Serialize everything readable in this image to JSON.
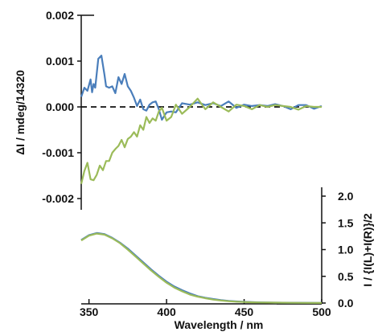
{
  "chart_data": [
    {
      "type": "line",
      "panel": "top",
      "xlabel": "Wavelength / nm",
      "ylabel": "ΔI / mdeg/14320",
      "xlim": [
        345,
        500
      ],
      "ylim": [
        -0.002,
        0.002
      ],
      "x_ticks": [
        "350",
        "400",
        "450",
        "500"
      ],
      "y_ticks": [
        "0.002",
        "0.001",
        "0.000",
        "-0.001",
        "-0.002"
      ],
      "reference_line": {
        "y": 0.0,
        "style": "dashed"
      },
      "series": [
        {
          "color": "#4a7ebb",
          "x": [
            345,
            347,
            349,
            351,
            352,
            353,
            354,
            356,
            358,
            360,
            361,
            363,
            365,
            367,
            369,
            371,
            373,
            375,
            377,
            379,
            381,
            383,
            385,
            387,
            389,
            391,
            393,
            395,
            397,
            400,
            403,
            406,
            410,
            415,
            420,
            425,
            430,
            435,
            440,
            445,
            450,
            455,
            460,
            465,
            470,
            475,
            480,
            485,
            490,
            495,
            500
          ],
          "y": [
            0.00022,
            0.00042,
            0.00035,
            0.0006,
            0.00032,
            0.0005,
            0.00042,
            0.00105,
            0.00112,
            0.0007,
            0.00045,
            0.00042,
            0.00045,
            0.0003,
            0.00065,
            0.0005,
            0.00072,
            0.00045,
            0.00035,
            0.0002,
            2e-05,
            0.00016,
            -5e-05,
            -8e-05,
            5e-05,
            0.0001,
            0.00012,
            -5e-05,
            -0.00028,
            -0.00012,
            -0.0001,
            -0.00012,
            8e-05,
            5e-05,
            0.0001,
            4e-05,
            8e-05,
            2e-05,
            0.00012,
            -2e-05,
            5e-05,
            2e-05,
            4e-05,
            2e-05,
            6e-05,
            2e-05,
            -5e-05,
            4e-05,
            4e-05,
            -4e-05,
            2e-05
          ]
        },
        {
          "color": "#9bbb59",
          "x": [
            345,
            347,
            349,
            351,
            353,
            355,
            357,
            359,
            361,
            363,
            365,
            367,
            369,
            371,
            373,
            375,
            377,
            379,
            381,
            383,
            385,
            387,
            389,
            391,
            393,
            395,
            397,
            400,
            403,
            406,
            410,
            415,
            420,
            425,
            430,
            435,
            440,
            445,
            450,
            455,
            460,
            465,
            470,
            475,
            480,
            485,
            490,
            495,
            500
          ],
          "y": [
            -0.00168,
            -0.0014,
            -0.00122,
            -0.00158,
            -0.0016,
            -0.00148,
            -0.00128,
            -0.00138,
            -0.00118,
            -0.00118,
            -0.001,
            -0.00092,
            -0.00085,
            -0.00072,
            -0.00088,
            -0.0007,
            -0.00065,
            -0.00055,
            -0.00065,
            -0.0004,
            -0.0005,
            -0.00022,
            -0.00035,
            -0.00025,
            -0.0003,
            -0.0001,
            -2e-05,
            -0.0003,
            -0.00022,
            5e-05,
            -0.00015,
            0.0,
            0.00018,
            -5e-05,
            0.0001,
            0.0,
            -0.0001,
            5e-05,
            2e-05,
            -5e-05,
            4e-05,
            0.0,
            4e-05,
            2e-05,
            0.0,
            -6e-05,
            2e-05,
            0.0,
            0.0
          ]
        }
      ]
    },
    {
      "type": "line",
      "panel": "bottom",
      "ylabel": "I / {I(L)+I(R)}/2",
      "xlim": [
        345,
        500
      ],
      "ylim": [
        0.0,
        2.0
      ],
      "y_axis_side": "right",
      "x_ticks": [
        "350",
        "400",
        "450",
        "500"
      ],
      "y_ticks": [
        "2.0",
        "1.5",
        "1.0",
        "0.5",
        "0.0"
      ],
      "series": [
        {
          "color": "#4a7ebb",
          "x": [
            345,
            350,
            355,
            360,
            365,
            370,
            375,
            380,
            385,
            390,
            395,
            400,
            405,
            410,
            415,
            420,
            425,
            430,
            435,
            440,
            445,
            450,
            455,
            460,
            470,
            480,
            490,
            500
          ],
          "y": [
            1.18,
            1.27,
            1.31,
            1.29,
            1.22,
            1.13,
            1.02,
            0.89,
            0.76,
            0.63,
            0.51,
            0.4,
            0.31,
            0.24,
            0.18,
            0.13,
            0.1,
            0.075,
            0.055,
            0.04,
            0.03,
            0.022,
            0.017,
            0.012,
            0.008,
            0.006,
            0.004,
            0.003
          ]
        },
        {
          "color": "#9bbb59",
          "x": [
            345,
            350,
            355,
            360,
            365,
            370,
            375,
            380,
            385,
            390,
            395,
            400,
            405,
            410,
            415,
            420,
            425,
            430,
            435,
            440,
            445,
            450,
            455,
            460,
            470,
            480,
            490,
            500
          ],
          "y": [
            1.17,
            1.26,
            1.3,
            1.28,
            1.21,
            1.12,
            1.0,
            0.87,
            0.74,
            0.61,
            0.49,
            0.38,
            0.29,
            0.22,
            0.16,
            0.12,
            0.09,
            0.065,
            0.048,
            0.035,
            0.026,
            0.019,
            0.014,
            0.01,
            0.007,
            0.005,
            0.003,
            0.002
          ]
        }
      ]
    }
  ]
}
